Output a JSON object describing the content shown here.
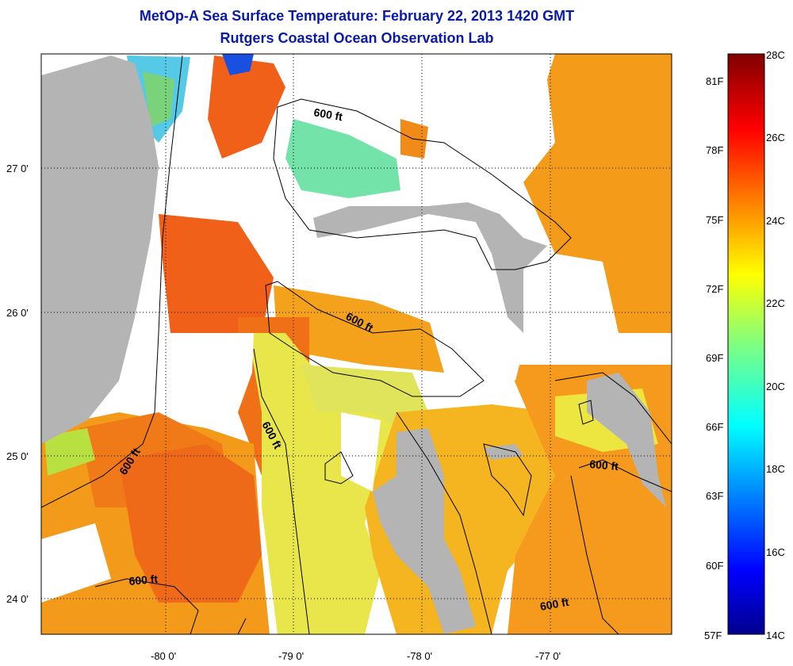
{
  "title_line1": "MetOp-A Sea Surface Temperature:  February 22, 2013 1420 GMT",
  "title_line2": "Rutgers Coastal Ocean Observation Lab",
  "map": {
    "lon_ticks": [
      "-80 0'",
      "-79 0'",
      "-78 0'",
      "-77 0'"
    ],
    "lat_ticks": [
      "27 0'",
      "26 0'",
      "25 0'",
      "24 0'"
    ],
    "contour_labels": [
      "600 ft",
      "600 ft",
      "600 ft",
      "600 ft",
      "600 ft",
      "600 ft"
    ],
    "colors": {
      "land": "#b4b4b4",
      "cloud": "#ffffff",
      "coast": "#000000"
    }
  },
  "colorbar": {
    "fahrenheit_labels": [
      "81F",
      "78F",
      "75F",
      "72F",
      "69F",
      "66F",
      "63F",
      "60F",
      "57F"
    ],
    "celsius_labels": [
      "28C",
      "26C",
      "24C",
      "22C",
      "20C",
      "18C",
      "16C",
      "14C"
    ],
    "range_c": [
      14,
      28
    ],
    "colormap": "jet"
  }
}
